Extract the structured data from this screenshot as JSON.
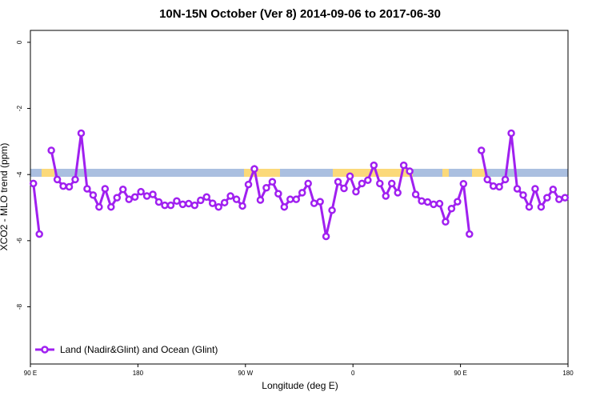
{
  "chart_data": {
    "type": "line",
    "title": "10N-15N October (Ver 8)   2014-09-06 to 2017-06-30",
    "x_label": "Longitude (deg E)",
    "y_label": "XCO2 - MLO trend (ppm)",
    "xlim": [
      90,
      540
    ],
    "ylim": [
      -9.73,
      0.36
    ],
    "xticks": [
      {
        "value": 90,
        "label": "90 E"
      },
      {
        "value": 180,
        "label": "180"
      },
      {
        "value": 270,
        "label": "90 W"
      },
      {
        "value": 360,
        "label": "0"
      },
      {
        "value": 450,
        "label": "90 E"
      },
      {
        "value": 540,
        "label": "180"
      }
    ],
    "yticks": [
      0,
      -2,
      -4,
      -6,
      -8
    ],
    "legend_position": "bottom-left",
    "x": [
      92.5,
      97.5,
      102.5,
      107.5,
      112.5,
      117.5,
      122.5,
      127.5,
      132.5,
      137.5,
      142.5,
      147.5,
      152.5,
      157.5,
      162.5,
      167.5,
      172.5,
      177.5,
      182.5,
      187.5,
      192.5,
      197.5,
      202.5,
      207.5,
      212.5,
      217.5,
      222.5,
      227.5,
      232.5,
      237.5,
      242.5,
      247.5,
      252.5,
      257.5,
      262.5,
      267.5,
      272.5,
      277.5,
      282.5,
      287.5,
      292.5,
      297.5,
      302.5,
      307.5,
      312.5,
      317.5,
      322.5,
      327.5,
      332.5,
      337.5,
      342.5,
      347.5,
      352.5,
      357.5,
      362.5,
      367.5,
      372.5,
      377.5,
      382.5,
      387.5,
      392.5,
      397.5,
      402.5,
      407.5,
      412.5,
      417.5,
      422.5,
      427.5,
      432.5,
      437.5,
      442.5,
      447.5,
      452.5,
      457.5,
      462.5,
      467.5,
      472.5,
      477.5,
      482.5,
      487.5,
      492.5,
      497.5,
      502.5,
      507.5,
      512.5,
      517.5,
      522.5,
      527.5,
      532.5,
      537.5
    ],
    "series": [
      {
        "name": "Land (Nadir&Glint) and Ocean (Glint)",
        "color": "#a020f0",
        "values": [
          -4.27,
          -5.8,
          null,
          -3.27,
          -4.15,
          -4.35,
          -4.37,
          -4.15,
          -2.75,
          -4.43,
          -4.62,
          -4.98,
          -4.43,
          -4.98,
          -4.7,
          -4.45,
          -4.75,
          -4.68,
          -4.52,
          -4.65,
          -4.6,
          -4.83,
          -4.93,
          -4.93,
          -4.8,
          -4.9,
          -4.88,
          -4.93,
          -4.78,
          -4.68,
          -4.87,
          -4.98,
          -4.85,
          -4.65,
          -4.75,
          -4.95,
          -4.3,
          -3.83,
          -4.77,
          -4.4,
          -4.22,
          -4.58,
          -4.98,
          -4.75,
          -4.75,
          -4.55,
          -4.27,
          -4.87,
          -4.82,
          -5.87,
          -5.08,
          -4.22,
          -4.42,
          -4.05,
          -4.52,
          -4.27,
          -4.17,
          -3.72,
          -4.27,
          -4.65,
          -4.27,
          -4.55,
          -3.72,
          -3.9,
          -4.6,
          -4.8,
          -4.83,
          -4.9,
          -4.88,
          -5.43,
          -5.03,
          -4.82,
          -4.28,
          -5.8,
          null,
          -3.27,
          -4.15,
          -4.35,
          -4.37,
          -4.15,
          -2.75,
          -4.43,
          -4.62,
          -4.98,
          -4.43,
          -4.98,
          -4.7,
          -4.45,
          -4.75,
          -4.7
        ]
      }
    ]
  }
}
